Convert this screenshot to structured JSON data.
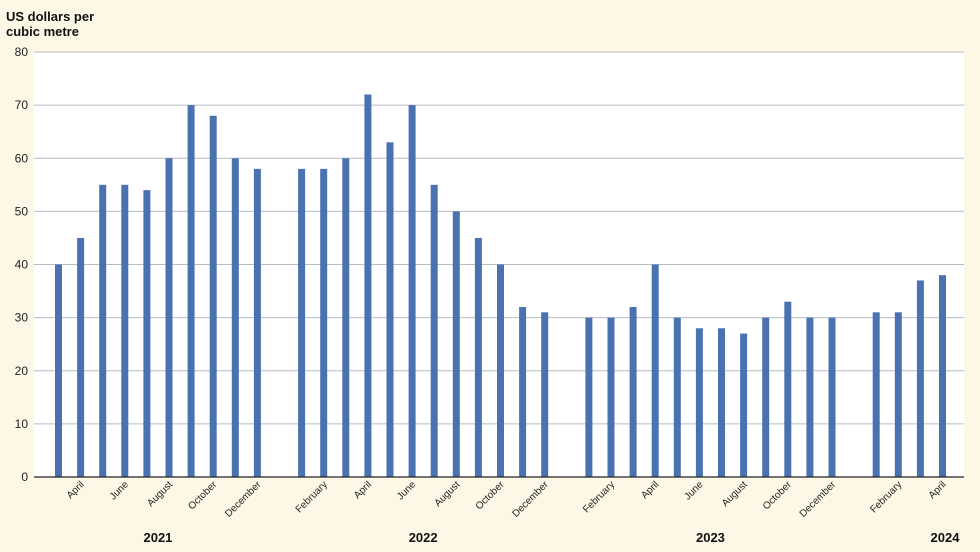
{
  "chart_data": {
    "type": "bar",
    "ylabel_lines": [
      "US dollars per",
      "cubic metre"
    ],
    "ylim": [
      0,
      80
    ],
    "yticks": [
      0,
      10,
      20,
      30,
      40,
      50,
      60,
      70,
      80
    ],
    "grid": true,
    "bar_color": "#4a72b0",
    "grid_color": "#b8bcc4",
    "axis_color": "#222222",
    "plot_background": "#ffffff",
    "page_background": "#fdf8e6",
    "groups": [
      {
        "year": "2021",
        "values": [
          40,
          45,
          55,
          55,
          54,
          60,
          70,
          68,
          60,
          58
        ],
        "tick_labels": [
          "",
          "April",
          "",
          "June",
          "",
          "August",
          "",
          "October",
          "",
          "December"
        ]
      },
      {
        "year": "2022",
        "values": [
          58,
          58,
          60,
          72,
          63,
          70,
          55,
          50,
          45,
          40,
          32,
          31
        ],
        "tick_labels": [
          "",
          "February",
          "",
          "April",
          "",
          "June",
          "",
          "August",
          "",
          "October",
          "",
          "December"
        ]
      },
      {
        "year": "2023",
        "values": [
          30,
          30,
          32,
          40,
          30,
          28,
          28,
          27,
          30,
          33,
          30,
          30
        ],
        "tick_labels": [
          "",
          "February",
          "",
          "April",
          "",
          "June",
          "",
          "August",
          "",
          "October",
          "",
          "December"
        ]
      },
      {
        "year": "2024",
        "values": [
          31,
          31,
          37,
          38
        ],
        "tick_labels": [
          "",
          "February",
          "",
          "April"
        ]
      }
    ]
  }
}
